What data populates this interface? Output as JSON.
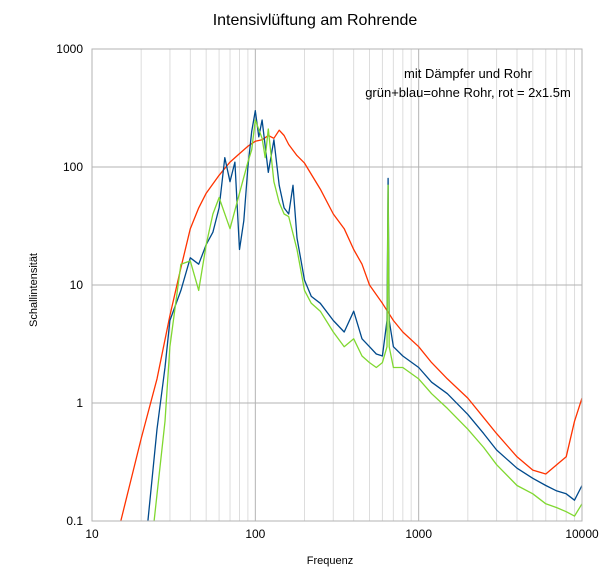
{
  "chart_data": {
    "type": "line",
    "title": "Intensivlüftung am Rohrende",
    "xlabel": "Frequenz",
    "ylabel": "Schallintensität",
    "x_scale": "log",
    "y_scale": "log",
    "xlim": [
      10,
      10000
    ],
    "ylim": [
      0.1,
      1000
    ],
    "x_ticks": [
      10,
      100,
      1000,
      10000
    ],
    "x_tick_labels": [
      "10",
      "100",
      "1000",
      "10000"
    ],
    "y_ticks": [
      0.1,
      1,
      10,
      100,
      1000
    ],
    "y_tick_labels": [
      "0.1",
      "1",
      "10",
      "100",
      "1000"
    ],
    "grid": true,
    "annotations": [
      "mit Dämpfer und Rohr",
      "grün+blau=ohne Rohr, rot = 2x1.5m"
    ],
    "series": [
      {
        "color": "#ff3300",
        "x": [
          15,
          20,
          25,
          30,
          35,
          40,
          45,
          50,
          60,
          70,
          80,
          90,
          100,
          110,
          120,
          130,
          140,
          150,
          160,
          180,
          200,
          250,
          300,
          350,
          400,
          450,
          500,
          600,
          700,
          800,
          1000,
          1200,
          1500,
          2000,
          2500,
          3000,
          4000,
          5000,
          6000,
          7000,
          8000,
          9000,
          10000
        ],
        "y": [
          0.1,
          0.5,
          1.6,
          5.5,
          14,
          30,
          45,
          60,
          85,
          110,
          130,
          150,
          165,
          170,
          185,
          175,
          205,
          185,
          155,
          125,
          108,
          65,
          40,
          30,
          20,
          15,
          10,
          7,
          5,
          4,
          3,
          2.2,
          1.6,
          1.1,
          0.75,
          0.55,
          0.35,
          0.27,
          0.25,
          0.3,
          0.35,
          0.7,
          1.1
        ]
      },
      {
        "color": "#004a8c",
        "x": [
          22,
          25,
          28,
          30,
          35,
          40,
          45,
          50,
          55,
          60,
          65,
          70,
          75,
          80,
          85,
          90,
          95,
          100,
          105,
          110,
          115,
          120,
          130,
          140,
          150,
          160,
          170,
          180,
          200,
          220,
          250,
          300,
          350,
          400,
          450,
          500,
          550,
          600,
          640,
          650,
          660,
          700,
          800,
          1000,
          1200,
          1500,
          2000,
          2500,
          3000,
          4000,
          5000,
          6000,
          7000,
          8000,
          9000,
          10000
        ],
        "y": [
          0.1,
          0.6,
          2,
          5,
          9,
          17,
          15,
          22,
          28,
          45,
          120,
          75,
          110,
          20,
          35,
          100,
          200,
          300,
          180,
          250,
          150,
          90,
          170,
          70,
          45,
          40,
          70,
          25,
          11,
          8,
          7,
          5,
          4,
          6,
          3.5,
          3,
          2.6,
          2.5,
          5,
          80,
          5,
          3,
          2.5,
          2,
          1.5,
          1.2,
          0.8,
          0.55,
          0.4,
          0.28,
          0.23,
          0.2,
          0.18,
          0.17,
          0.15,
          0.2
        ]
      },
      {
        "color": "#80d830",
        "x": [
          24,
          28,
          30,
          35,
          40,
          45,
          50,
          55,
          60,
          70,
          80,
          90,
          95,
          100,
          110,
          115,
          120,
          130,
          140,
          150,
          160,
          180,
          200,
          220,
          250,
          300,
          350,
          400,
          450,
          500,
          550,
          600,
          640,
          650,
          660,
          700,
          800,
          1000,
          1200,
          1500,
          2000,
          2500,
          3000,
          4000,
          5000,
          6000,
          7000,
          8000,
          9000,
          10000
        ],
        "y": [
          0.1,
          0.7,
          3,
          15,
          16,
          9,
          22,
          40,
          55,
          30,
          60,
          110,
          140,
          250,
          175,
          120,
          210,
          75,
          50,
          40,
          38,
          20,
          9,
          7,
          6,
          4,
          3,
          3.5,
          2.5,
          2.2,
          2,
          2.2,
          3,
          70,
          3,
          2,
          2,
          1.6,
          1.2,
          0.9,
          0.6,
          0.42,
          0.3,
          0.2,
          0.17,
          0.14,
          0.13,
          0.12,
          0.11,
          0.14
        ]
      }
    ]
  }
}
